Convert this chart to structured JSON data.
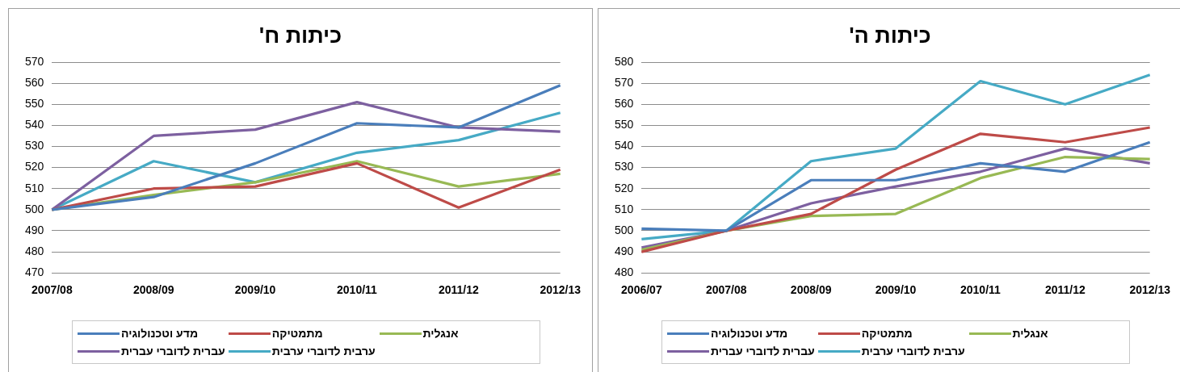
{
  "chart_data": [
    {
      "type": "line",
      "title": "כיתות ח'",
      "categories": [
        "2007/08",
        "2008/09",
        "2009/10",
        "2010/11",
        "2011/12",
        "2012/13"
      ],
      "ylim": [
        470,
        570
      ],
      "yticks": [
        470,
        480,
        490,
        500,
        510,
        520,
        530,
        540,
        550,
        560,
        570
      ],
      "grid": "y",
      "legend": "bottom",
      "marker": "none",
      "series": [
        {
          "name": "מדע וטכנולוגיה",
          "color": "#4a7ebb",
          "values": [
            500,
            506,
            522,
            541,
            539,
            559
          ]
        },
        {
          "name": "מתמטיקה",
          "color": "#be4b48",
          "values": [
            500,
            510,
            511,
            522,
            501,
            519
          ]
        },
        {
          "name": "אנגלית",
          "color": "#98b954",
          "values": [
            500,
            507,
            513,
            523,
            511,
            517
          ]
        },
        {
          "name": "עברית לדוברי עברית",
          "color": "#7d60a0",
          "values": [
            500,
            535,
            538,
            551,
            539,
            537
          ]
        },
        {
          "name": "ערבית לדוברי ערבית",
          "color": "#46aac5",
          "values": [
            500,
            523,
            513,
            527,
            533,
            546
          ]
        }
      ]
    },
    {
      "type": "line",
      "title": "כיתות ה'",
      "categories": [
        "2006/07",
        "2007/08",
        "2008/09",
        "2009/10",
        "2010/11",
        "2011/12",
        "2012/13"
      ],
      "ylim": [
        480,
        580
      ],
      "yticks": [
        480,
        490,
        500,
        510,
        520,
        530,
        540,
        550,
        560,
        570,
        580
      ],
      "grid": "y",
      "legend": "bottom",
      "marker": "none",
      "series": [
        {
          "name": "מדע וטכנולוגיה",
          "color": "#4a7ebb",
          "values": [
            501,
            500,
            524,
            524,
            532,
            528,
            542
          ]
        },
        {
          "name": "מתמטיקה",
          "color": "#be4b48",
          "values": [
            490,
            500,
            508,
            529,
            546,
            542,
            549
          ]
        },
        {
          "name": "אנגלית",
          "color": "#98b954",
          "values": [
            491,
            500,
            507,
            508,
            525,
            535,
            534
          ]
        },
        {
          "name": "עברית לדוברי עברית",
          "color": "#7d60a0",
          "values": [
            492,
            500,
            513,
            521,
            528,
            539,
            532
          ]
        },
        {
          "name": "ערבית לדוברי ערבית",
          "color": "#46aac5",
          "values": [
            496,
            500,
            533,
            539,
            571,
            560,
            574
          ]
        }
      ]
    }
  ]
}
